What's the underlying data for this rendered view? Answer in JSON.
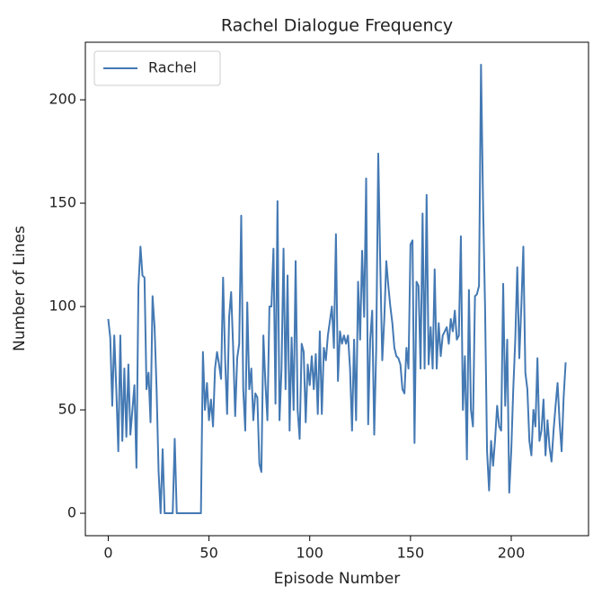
{
  "chart_data": {
    "type": "line",
    "title": "Rachel Dialogue Frequency",
    "xlabel": "Episode Number",
    "ylabel": "Number of Lines",
    "x": [
      0,
      1,
      2,
      3,
      4,
      5,
      6,
      7,
      8,
      9,
      10,
      11,
      12,
      13,
      14,
      15,
      16,
      17,
      18,
      19,
      20,
      21,
      22,
      23,
      24,
      25,
      26,
      27,
      28,
      29,
      30,
      31,
      32,
      33,
      34,
      35,
      36,
      37,
      38,
      39,
      40,
      41,
      42,
      43,
      44,
      45,
      46,
      47,
      48,
      49,
      50,
      51,
      52,
      53,
      54,
      55,
      56,
      57,
      58,
      59,
      60,
      61,
      62,
      63,
      64,
      65,
      66,
      67,
      68,
      69,
      70,
      71,
      72,
      73,
      74,
      75,
      76,
      77,
      78,
      79,
      80,
      81,
      82,
      83,
      84,
      85,
      86,
      87,
      88,
      89,
      90,
      91,
      92,
      93,
      94,
      95,
      96,
      97,
      98,
      99,
      100,
      101,
      102,
      103,
      104,
      105,
      106,
      107,
      108,
      109,
      110,
      111,
      112,
      113,
      114,
      115,
      116,
      117,
      118,
      119,
      120,
      121,
      122,
      123,
      124,
      125,
      126,
      127,
      128,
      129,
      130,
      131,
      132,
      133,
      134,
      135,
      136,
      137,
      138,
      139,
      140,
      141,
      142,
      143,
      144,
      145,
      146,
      147,
      148,
      149,
      150,
      151,
      152,
      153,
      154,
      155,
      156,
      157,
      158,
      159,
      160,
      161,
      162,
      163,
      164,
      165,
      166,
      167,
      168,
      169,
      170,
      171,
      172,
      173,
      174,
      175,
      176,
      177,
      178,
      179,
      180,
      181,
      182,
      183,
      184,
      185,
      186,
      187,
      188,
      189,
      190,
      191,
      192,
      193,
      194,
      195,
      196,
      197,
      198,
      199,
      200,
      201,
      202,
      203,
      204,
      205,
      206,
      207,
      208,
      209,
      210,
      211,
      212,
      213,
      214,
      215,
      216,
      217,
      218,
      219,
      220,
      221,
      222,
      223,
      224,
      225,
      226,
      227
    ],
    "series": [
      {
        "name": "Rachel",
        "color": "#4479b3",
        "values": [
          94,
          85,
          52,
          86,
          60,
          30,
          86,
          35,
          70,
          37,
          72,
          38,
          50,
          62,
          22,
          110,
          129,
          115,
          114,
          60,
          68,
          44,
          105,
          90,
          60,
          20,
          0,
          31,
          0,
          0,
          0,
          0,
          0,
          36,
          0,
          0,
          0,
          0,
          0,
          0,
          0,
          0,
          0,
          0,
          0,
          0,
          0,
          78,
          50,
          63,
          45,
          55,
          42,
          70,
          78,
          72,
          65,
          114,
          75,
          48,
          95,
          107,
          80,
          47,
          75,
          82,
          144,
          60,
          40,
          102,
          60,
          70,
          45,
          58,
          56,
          24,
          20,
          86,
          63,
          45,
          100,
          100,
          128,
          53,
          151,
          45,
          70,
          128,
          60,
          115,
          40,
          85,
          50,
          122,
          50,
          36,
          82,
          78,
          44,
          72,
          62,
          76,
          60,
          77,
          48,
          88,
          48,
          80,
          74,
          86,
          93,
          100,
          80,
          135,
          64,
          88,
          82,
          86,
          82,
          86,
          70,
          40,
          84,
          45,
          112,
          84,
          127,
          95,
          162,
          43,
          84,
          98,
          38,
          80,
          174,
          120,
          74,
          94,
          122,
          110,
          100,
          92,
          80,
          76,
          75,
          72,
          60,
          58,
          80,
          70,
          130,
          132,
          34,
          112,
          110,
          70,
          145,
          70,
          154,
          72,
          90,
          70,
          118,
          70,
          92,
          76,
          86,
          88,
          90,
          82,
          94,
          88,
          98,
          84,
          86,
          134,
          50,
          76,
          26,
          108,
          50,
          42,
          105,
          106,
          110,
          217,
          150,
          100,
          30,
          11,
          35,
          23,
          36,
          52,
          42,
          40,
          111,
          52,
          84,
          10,
          30,
          60,
          84,
          119,
          75,
          100,
          129,
          68,
          60,
          35,
          28,
          50,
          42,
          75,
          35,
          40,
          55,
          28,
          45,
          32,
          25,
          40,
          52,
          63,
          44,
          30,
          56,
          73
        ]
      }
    ],
    "xlim": [
      -11.35,
      238.35
    ],
    "ylim": [
      -10.85,
      227.85
    ],
    "xticks": [
      0,
      50,
      100,
      150,
      200
    ],
    "yticks": [
      0,
      50,
      100,
      150,
      200
    ],
    "grid": false,
    "legend": "upper left"
  }
}
